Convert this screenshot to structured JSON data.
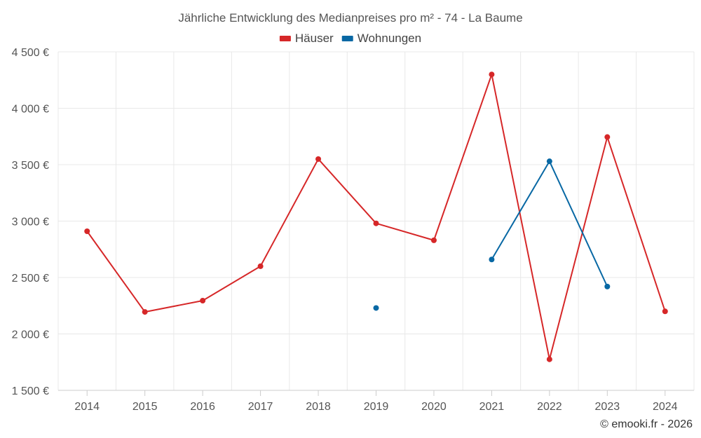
{
  "chart_data": {
    "type": "line",
    "title": "Jährliche Entwicklung des Medianpreises pro m² - 74 - La Baume",
    "categories": [
      "2014",
      "2015",
      "2016",
      "2017",
      "2018",
      "2019",
      "2020",
      "2021",
      "2022",
      "2023",
      "2024"
    ],
    "series": [
      {
        "name": "Häuser",
        "color": "#d62728",
        "values": [
          2910,
          2195,
          2295,
          2600,
          3550,
          2980,
          2830,
          4300,
          1775,
          3745,
          2200
        ]
      },
      {
        "name": "Wohnungen",
        "color": "#0868a4",
        "values": [
          null,
          null,
          null,
          null,
          null,
          2230,
          null,
          2660,
          3530,
          2420,
          null
        ]
      }
    ],
    "ylim": [
      1500,
      4500
    ],
    "yticks": [
      1500,
      2000,
      2500,
      3000,
      3500,
      4000,
      4500
    ],
    "ytick_labels": [
      "1 500 €",
      "2 000 €",
      "2 500 €",
      "3 000 €",
      "3 500 €",
      "4 000 €",
      "4 500 €"
    ],
    "xlabel": "",
    "ylabel": "",
    "grid": true,
    "legend_position": "top-center"
  },
  "credit": "© emooki.fr - 2026"
}
